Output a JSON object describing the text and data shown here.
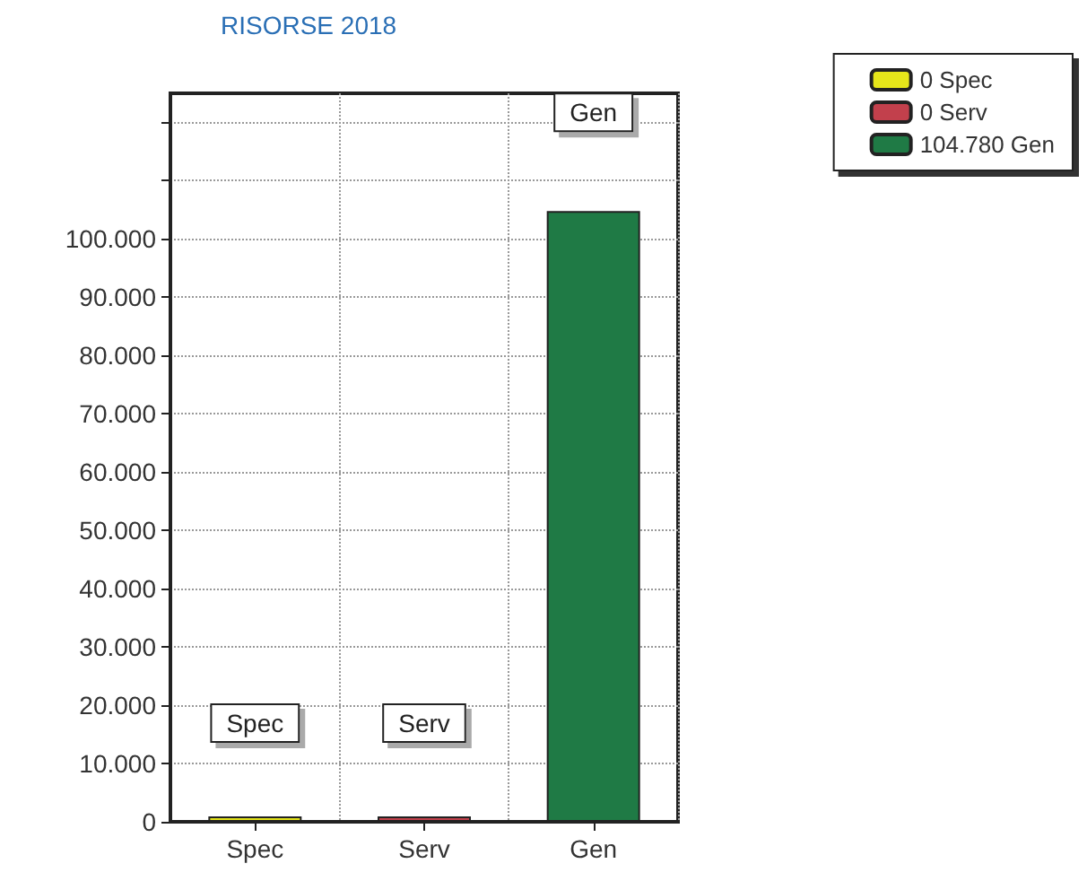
{
  "chart_data": {
    "type": "bar",
    "title": "RISORSE 2018",
    "categories": [
      "Spec",
      "Serv",
      "Gen"
    ],
    "series": [
      {
        "name": "0 Spec",
        "color": "#e6e61a",
        "values": [
          0,
          null,
          null
        ]
      },
      {
        "name": "0 Serv",
        "color": "#c2404c",
        "values": [
          null,
          0,
          null
        ]
      },
      {
        "name": "104.780 Gen",
        "color": "#1f7a45",
        "values": [
          null,
          null,
          104780
        ]
      }
    ],
    "ylim": [
      0,
      125000
    ],
    "yticks": [
      0,
      {
        "value": 10000,
        "label": "10.000"
      },
      {
        "value": 20000,
        "label": "20.000"
      },
      {
        "value": 30000,
        "label": "30.000"
      },
      {
        "value": 40000,
        "label": "40.000"
      },
      {
        "value": 50000,
        "label": "50.000"
      },
      {
        "value": 60000,
        "label": "60.000"
      },
      {
        "value": 70000,
        "label": "70.000"
      },
      {
        "value": 80000,
        "label": "80.000"
      },
      {
        "value": 90000,
        "label": "90.000"
      },
      {
        "value": 100000,
        "label": "100.000"
      },
      {
        "value": 110000,
        "label": null
      },
      {
        "value": 120000,
        "label": null
      }
    ],
    "grid": true,
    "legend": "top right",
    "annotations": [
      "Spec",
      "Serv",
      "Gen"
    ]
  }
}
